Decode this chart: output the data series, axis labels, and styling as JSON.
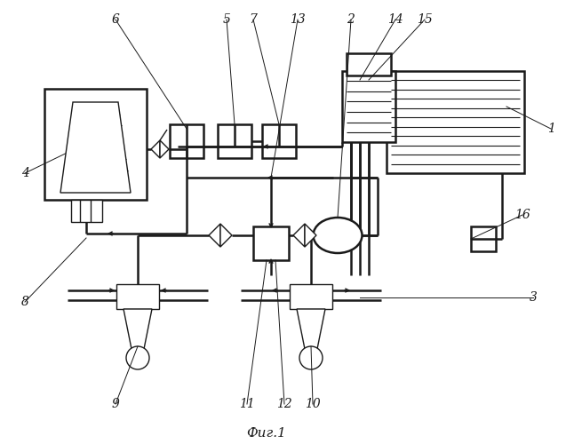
{
  "bg_color": "#ffffff",
  "lc": "#1a1a1a",
  "figsize": [
    6.55,
    5.0
  ],
  "dpi": 100,
  "caption": "Фиг.1"
}
